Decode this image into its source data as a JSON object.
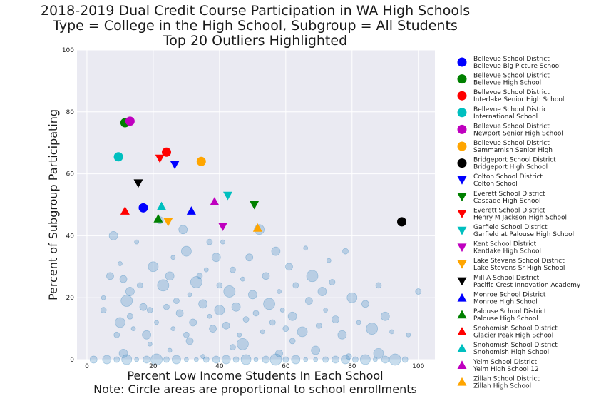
{
  "chart_data": {
    "type": "scatter",
    "title": [
      "2018-2019 Dual Credit Course Participation in WA High Schools",
      "Type = College in the High School, Subgroup = All Students",
      "Top 20 Outliers Highlighted"
    ],
    "xlabel": [
      "Percent Low Income Students In Each School",
      "Note: Circle areas are proportional to school enrollments"
    ],
    "ylabel": "Percent of Subgroup Participating",
    "xlim": [
      -3,
      105
    ],
    "ylim": [
      0,
      100
    ],
    "xticks": [
      0,
      20,
      40,
      60,
      80,
      100
    ],
    "yticks": [
      0,
      20,
      40,
      60,
      80,
      100
    ],
    "grid": true,
    "legend_position": "outside-right",
    "background_color": "#eaeaf2",
    "background_points_color": "#4a90c4",
    "background_points": [
      [
        5,
        20
      ],
      [
        5,
        16
      ],
      [
        7,
        27
      ],
      [
        8,
        40
      ],
      [
        9,
        8
      ],
      [
        10,
        12
      ],
      [
        10,
        31
      ],
      [
        11,
        26
      ],
      [
        12,
        19
      ],
      [
        13,
        14
      ],
      [
        13,
        22
      ],
      [
        14,
        10
      ],
      [
        15,
        38
      ],
      [
        16,
        24
      ],
      [
        17,
        17
      ],
      [
        18,
        8
      ],
      [
        19,
        16
      ],
      [
        20,
        30
      ],
      [
        21,
        12
      ],
      [
        22,
        45
      ],
      [
        23,
        24
      ],
      [
        24,
        17
      ],
      [
        25,
        27
      ],
      [
        26,
        10
      ],
      [
        26,
        33
      ],
      [
        27,
        19
      ],
      [
        28,
        15
      ],
      [
        29,
        42
      ],
      [
        30,
        8
      ],
      [
        30,
        35
      ],
      [
        31,
        21
      ],
      [
        32,
        12
      ],
      [
        33,
        25
      ],
      [
        34,
        27
      ],
      [
        35,
        18
      ],
      [
        36,
        29
      ],
      [
        37,
        14
      ],
      [
        37,
        38
      ],
      [
        38,
        10
      ],
      [
        39,
        33
      ],
      [
        40,
        24
      ],
      [
        40,
        16
      ],
      [
        41,
        38
      ],
      [
        42,
        11
      ],
      [
        43,
        22
      ],
      [
        44,
        29
      ],
      [
        45,
        17
      ],
      [
        46,
        8
      ],
      [
        47,
        26
      ],
      [
        48,
        13
      ],
      [
        49,
        33
      ],
      [
        50,
        21
      ],
      [
        51,
        15
      ],
      [
        52,
        42
      ],
      [
        53,
        9
      ],
      [
        54,
        27
      ],
      [
        55,
        18
      ],
      [
        56,
        12
      ],
      [
        57,
        35
      ],
      [
        58,
        22
      ],
      [
        59,
        16
      ],
      [
        60,
        10
      ],
      [
        61,
        30
      ],
      [
        62,
        14
      ],
      [
        63,
        24
      ],
      [
        65,
        9
      ],
      [
        66,
        36
      ],
      [
        67,
        19
      ],
      [
        68,
        27
      ],
      [
        70,
        11
      ],
      [
        71,
        22
      ],
      [
        72,
        16
      ],
      [
        73,
        32
      ],
      [
        74,
        25
      ],
      [
        75,
        13
      ],
      [
        77,
        8
      ],
      [
        78,
        35
      ],
      [
        80,
        20
      ],
      [
        82,
        12
      ],
      [
        84,
        18
      ],
      [
        86,
        10
      ],
      [
        88,
        24
      ],
      [
        90,
        14
      ],
      [
        92,
        9
      ],
      [
        97,
        8
      ],
      [
        100,
        22
      ],
      [
        2,
        0
      ],
      [
        6,
        0
      ],
      [
        9,
        0
      ],
      [
        12,
        0
      ],
      [
        15,
        0
      ],
      [
        18,
        0
      ],
      [
        21,
        0
      ],
      [
        24,
        0
      ],
      [
        27,
        0
      ],
      [
        30,
        0
      ],
      [
        33,
        0
      ],
      [
        36,
        0
      ],
      [
        39,
        0
      ],
      [
        42,
        0
      ],
      [
        45,
        0
      ],
      [
        48,
        0
      ],
      [
        51,
        0
      ],
      [
        54,
        0
      ],
      [
        57,
        0
      ],
      [
        60,
        0
      ],
      [
        63,
        0
      ],
      [
        66,
        0
      ],
      [
        69,
        0
      ],
      [
        72,
        0
      ],
      [
        75,
        0
      ],
      [
        78,
        0
      ],
      [
        81,
        0
      ],
      [
        84,
        0
      ],
      [
        87,
        0
      ],
      [
        90,
        0
      ],
      [
        93,
        0
      ],
      [
        96,
        0
      ],
      [
        11,
        2
      ],
      [
        25,
        3
      ],
      [
        35,
        1
      ],
      [
        44,
        4
      ],
      [
        58,
        2
      ],
      [
        69,
        3
      ],
      [
        79,
        1
      ],
      [
        88,
        2
      ],
      [
        19,
        5
      ],
      [
        31,
        6
      ],
      [
        47,
        5
      ],
      [
        62,
        6
      ]
    ],
    "highlighted": [
      {
        "district": "Bellevue School District",
        "school": "Bellevue Big Picture School",
        "x": 17,
        "y": 49,
        "color": "#0000ff",
        "marker": "circle"
      },
      {
        "district": "Bellevue School District",
        "school": "Bellevue High School",
        "x": 11.5,
        "y": 76.5,
        "color": "#008000",
        "marker": "circle"
      },
      {
        "district": "Bellevue School District",
        "school": "Interlake Senior High School",
        "x": 24,
        "y": 67,
        "color": "#ff0000",
        "marker": "circle"
      },
      {
        "district": "Bellevue School District",
        "school": "International School",
        "x": 9.5,
        "y": 65.5,
        "color": "#00bfbf",
        "marker": "circle"
      },
      {
        "district": "Bellevue School District",
        "school": "Newport Senior High School",
        "x": 13,
        "y": 77,
        "color": "#bf00bf",
        "marker": "circle"
      },
      {
        "district": "Bellevue School District",
        "school": "Sammamish Senior High",
        "x": 34.5,
        "y": 64,
        "color": "#ffa500",
        "marker": "circle"
      },
      {
        "district": "Bridgeport School District",
        "school": "Bridgeport High School",
        "x": 95,
        "y": 44.5,
        "color": "#000000",
        "marker": "circle"
      },
      {
        "district": "Colton School District",
        "school": "Colton School",
        "x": 26.5,
        "y": 63,
        "color": "#0000ff",
        "marker": "triangle-down"
      },
      {
        "district": "Everett School District",
        "school": "Cascade High School",
        "x": 50.5,
        "y": 50,
        "color": "#008000",
        "marker": "triangle-down"
      },
      {
        "district": "Everett School District",
        "school": "Henry M Jackson High School",
        "x": 22,
        "y": 65,
        "color": "#ff0000",
        "marker": "triangle-down"
      },
      {
        "district": "Garfield School District",
        "school": "Garfield at Palouse High School",
        "x": 42.5,
        "y": 53,
        "color": "#00bfbf",
        "marker": "triangle-down"
      },
      {
        "district": "Kent School District",
        "school": "Kentlake High School",
        "x": 41,
        "y": 43,
        "color": "#bf00bf",
        "marker": "triangle-down"
      },
      {
        "district": "Lake Stevens School District",
        "school": "Lake Stevens Sr High School",
        "x": 24.5,
        "y": 44.5,
        "color": "#ffa500",
        "marker": "triangle-down"
      },
      {
        "district": "Mill A School District",
        "school": "Pacific Crest Innovation Academy",
        "x": 15.5,
        "y": 57,
        "color": "#000000",
        "marker": "triangle-down"
      },
      {
        "district": "Monroe School District",
        "school": "Monroe High School",
        "x": 31.5,
        "y": 48,
        "color": "#0000ff",
        "marker": "triangle-up"
      },
      {
        "district": "Palouse School District",
        "school": "Palouse High School",
        "x": 21.5,
        "y": 45.5,
        "color": "#008000",
        "marker": "triangle-up"
      },
      {
        "district": "Snohomish School District",
        "school": "Glacier Peak High School",
        "x": 11.5,
        "y": 48,
        "color": "#ff0000",
        "marker": "triangle-up"
      },
      {
        "district": "Snohomish School District",
        "school": "Snohomish High School",
        "x": 22.5,
        "y": 49.5,
        "color": "#00bfbf",
        "marker": "triangle-up"
      },
      {
        "district": "Yelm School District",
        "school": "Yelm High School 12",
        "x": 38.5,
        "y": 51,
        "color": "#bf00bf",
        "marker": "triangle-up"
      },
      {
        "district": "Zillah School District",
        "school": "Zillah High School",
        "x": 51.5,
        "y": 42.5,
        "color": "#ffa500",
        "marker": "triangle-up"
      }
    ]
  }
}
